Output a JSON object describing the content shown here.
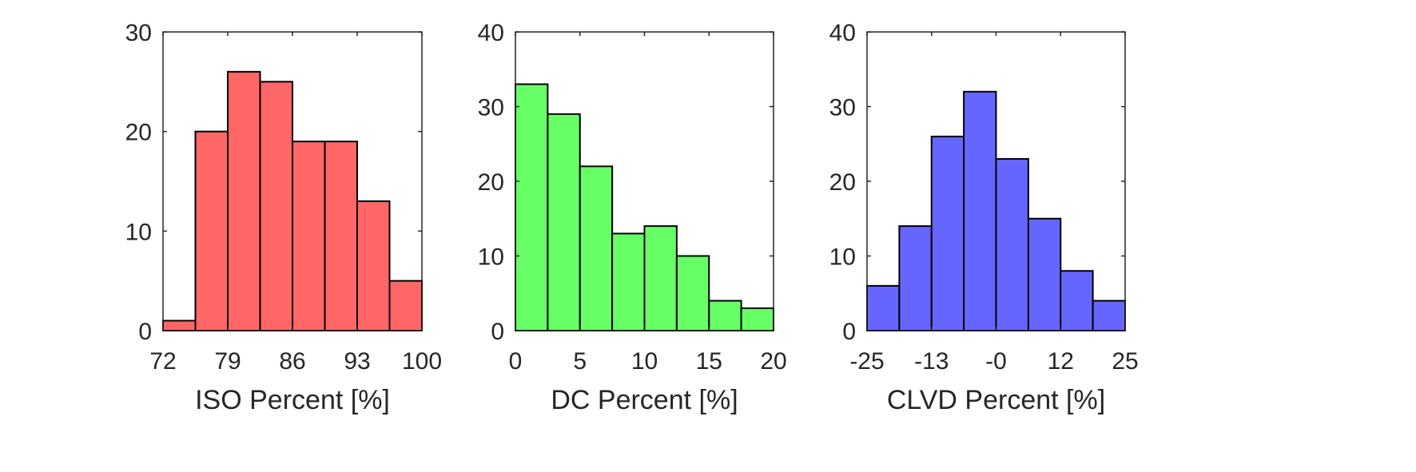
{
  "chart_data": [
    {
      "type": "bar",
      "title": "",
      "xlabel": "ISO Percent [%]",
      "ylabel": "",
      "ylim": [
        0,
        30
      ],
      "xlim": [
        72,
        100
      ],
      "x_ticks": [
        "72",
        "79",
        "86",
        "93",
        "100"
      ],
      "y_ticks": [
        "0",
        "10",
        "20",
        "30"
      ],
      "bin_edges": [
        72,
        75.5,
        79,
        82.5,
        86,
        89.5,
        93,
        96.5,
        100
      ],
      "values": [
        1,
        20,
        26,
        25,
        19,
        19,
        13,
        5
      ],
      "color": "#ff6666",
      "grid": false
    },
    {
      "type": "bar",
      "title": "",
      "xlabel": "DC Percent [%]",
      "ylabel": "",
      "ylim": [
        0,
        40
      ],
      "xlim": [
        0,
        20
      ],
      "x_ticks": [
        "0",
        "5",
        "10",
        "15",
        "20"
      ],
      "y_ticks": [
        "0",
        "10",
        "20",
        "30",
        "40"
      ],
      "bin_edges": [
        0,
        2.5,
        5,
        7.5,
        10,
        12.5,
        15,
        17.5,
        20
      ],
      "values": [
        33,
        29,
        22,
        13,
        14,
        10,
        4,
        3
      ],
      "color": "#66ff66",
      "grid": false
    },
    {
      "type": "bar",
      "title": "",
      "xlabel": "CLVD Percent [%]",
      "ylabel": "",
      "ylim": [
        0,
        40
      ],
      "xlim": [
        -25,
        25
      ],
      "x_ticks": [
        "-25",
        "-13",
        "-0",
        "12",
        "25"
      ],
      "y_ticks": [
        "0",
        "10",
        "20",
        "30",
        "40"
      ],
      "bin_edges": [
        -25,
        -18.75,
        -12.5,
        -6.25,
        0,
        6.25,
        12.5,
        18.75,
        25
      ],
      "values": [
        6,
        14,
        26,
        32,
        23,
        15,
        8,
        4
      ],
      "color": "#6666ff",
      "grid": false
    }
  ]
}
